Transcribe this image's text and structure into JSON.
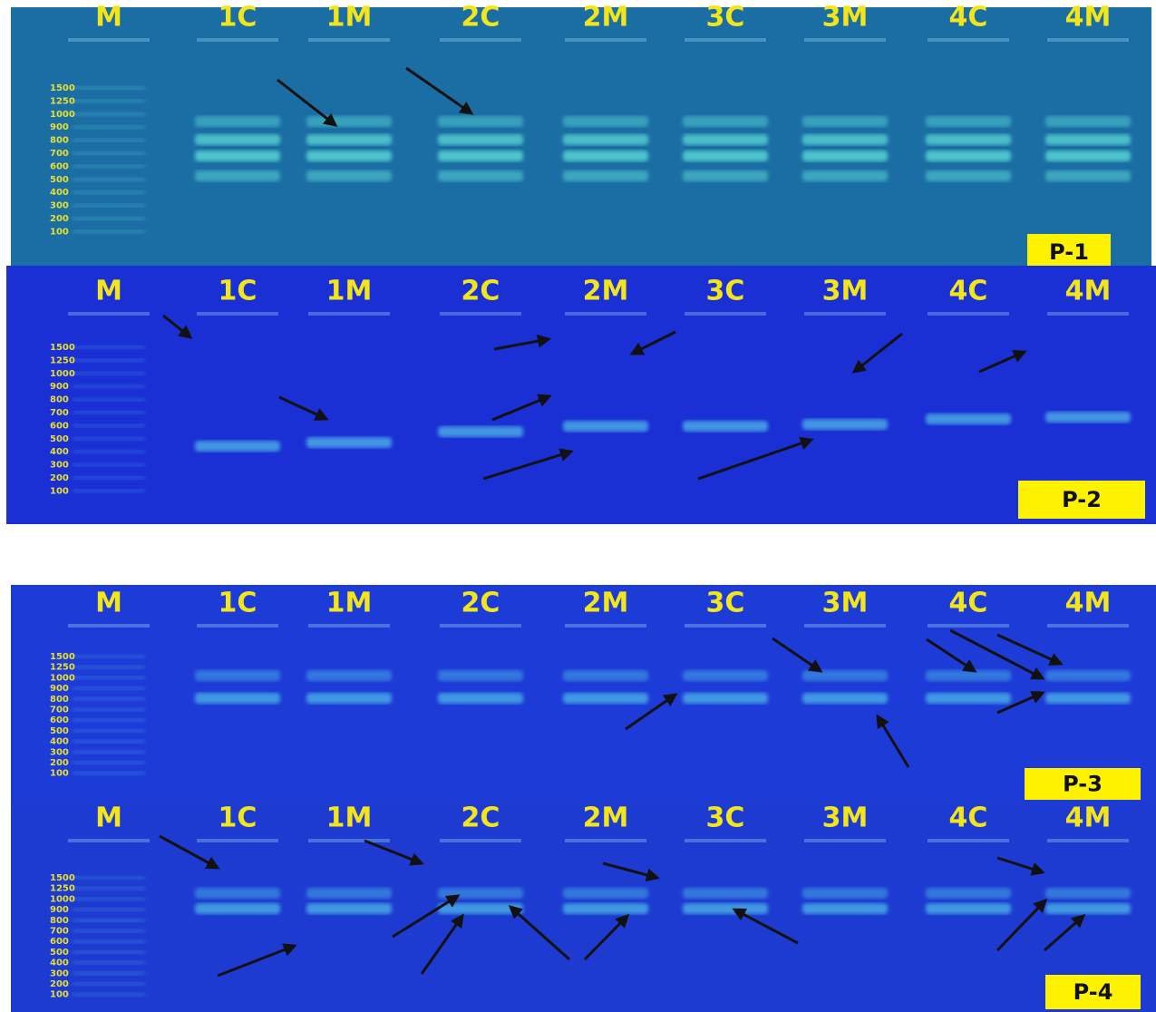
{
  "panels": [
    {
      "lanes": [
        "M",
        "1C",
        "1M",
        "2C",
        "2M",
        "3C",
        "3M",
        "4C",
        "4M"
      ],
      "markers": [
        "1500",
        "1250",
        "1000",
        "900",
        "800",
        "700",
        "600",
        "500",
        "400",
        "300",
        "200",
        "100"
      ],
      "label": "P-1"
    },
    {
      "lanes": [
        "M",
        "1C",
        "1M",
        "2C",
        "2M",
        "3C",
        "3M",
        "4C",
        "4M"
      ],
      "markers": [
        "1500",
        "1250",
        "1000",
        "900",
        "800",
        "700",
        "600",
        "500",
        "400",
        "300",
        "200",
        "100"
      ],
      "label": "P-2"
    },
    {
      "lanes": [
        "M",
        "1C",
        "1M",
        "2C",
        "2M",
        "3C",
        "3M",
        "4C",
        "4M"
      ],
      "markers": [
        "1500",
        "1250",
        "1000",
        "900",
        "800",
        "700",
        "600",
        "500",
        "400",
        "300",
        "200",
        "100"
      ],
      "label": "P-3"
    },
    {
      "lanes": [
        "M",
        "1C",
        "1M",
        "2C",
        "2M",
        "3C",
        "3M",
        "4C",
        "4M"
      ],
      "markers": [
        "1500",
        "1250",
        "1000",
        "900",
        "800",
        "700",
        "600",
        "500",
        "400",
        "300",
        "200",
        "100"
      ],
      "label": "P-4"
    }
  ]
}
